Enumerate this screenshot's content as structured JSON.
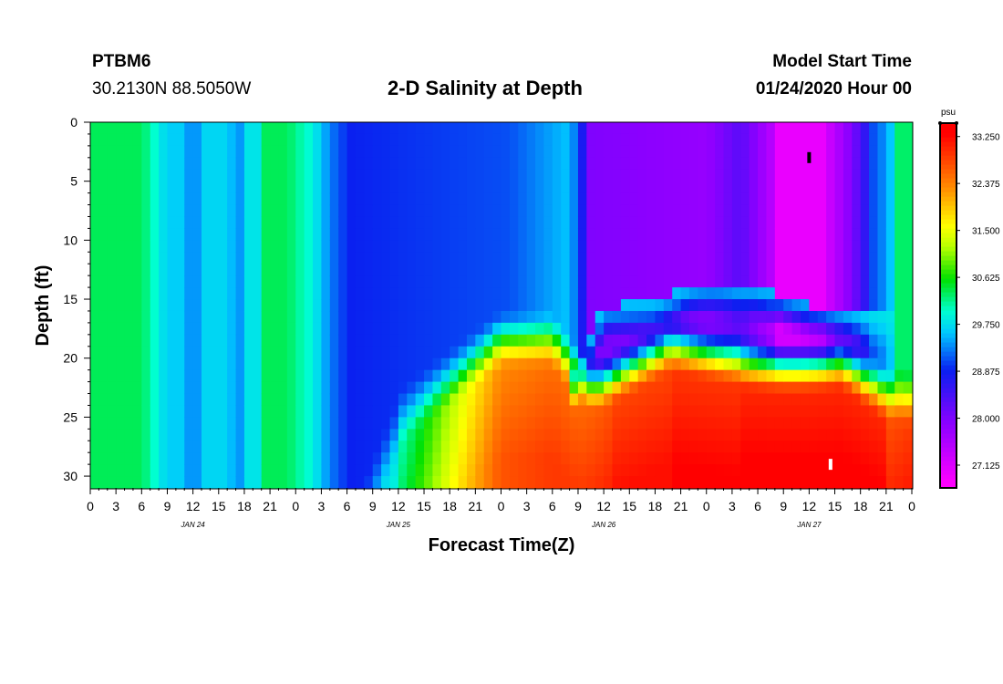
{
  "header": {
    "station": "PTBM6",
    "coords": "30.2130N 88.5050W",
    "title": "2-D Salinity at Depth",
    "model_label": "Model Start Time",
    "model_time": "01/24/2020 Hour 00"
  },
  "chart_data": {
    "type": "heatmap",
    "title": "2-D Salinity at Depth",
    "xlabel": "Forecast Time(Z)",
    "ylabel": "Depth (ft)",
    "xlim": [
      0,
      96
    ],
    "ylim": [
      31,
      0
    ],
    "x_tick_labels": [
      "0",
      "3",
      "6",
      "9",
      "12",
      "15",
      "18",
      "21",
      "0",
      "3",
      "6",
      "9",
      "12",
      "15",
      "18",
      "21",
      "0",
      "3",
      "6",
      "9",
      "12",
      "15",
      "18",
      "21",
      "0",
      "3",
      "6",
      "9",
      "12",
      "15",
      "18",
      "21",
      "0"
    ],
    "y_ticks": [
      0,
      5,
      10,
      15,
      20,
      25,
      30
    ],
    "day_labels": [
      {
        "hour": 12,
        "label": "JAN 24"
      },
      {
        "hour": 36,
        "label": "JAN 25"
      },
      {
        "hour": 60,
        "label": "JAN 26"
      },
      {
        "hour": 84,
        "label": "JAN 27"
      }
    ],
    "colorbar": {
      "unit": "psu",
      "min": 26.7,
      "max": 33.5,
      "ticks": [
        "27.125",
        "28.000",
        "28.875",
        "29.750",
        "30.625",
        "31.500",
        "32.375",
        "33.250"
      ],
      "stops": [
        {
          "value": 26.8,
          "color": "#ff00ff"
        },
        {
          "value": 27.9,
          "color": "#8c00ff"
        },
        {
          "value": 28.9,
          "color": "#0a1ff0"
        },
        {
          "value": 29.6,
          "color": "#00c8ff"
        },
        {
          "value": 30.0,
          "color": "#00ffd0"
        },
        {
          "value": 30.6,
          "color": "#00e000"
        },
        {
          "value": 31.2,
          "color": "#b8ff00"
        },
        {
          "value": 31.6,
          "color": "#ffff00"
        },
        {
          "value": 32.3,
          "color": "#ff8c00"
        },
        {
          "value": 33.3,
          "color": "#ff0000"
        }
      ]
    },
    "min_marker": {
      "hour": 84,
      "depth": 3
    },
    "max_marker": {
      "hour": 86.5,
      "depth": 29
    }
  }
}
